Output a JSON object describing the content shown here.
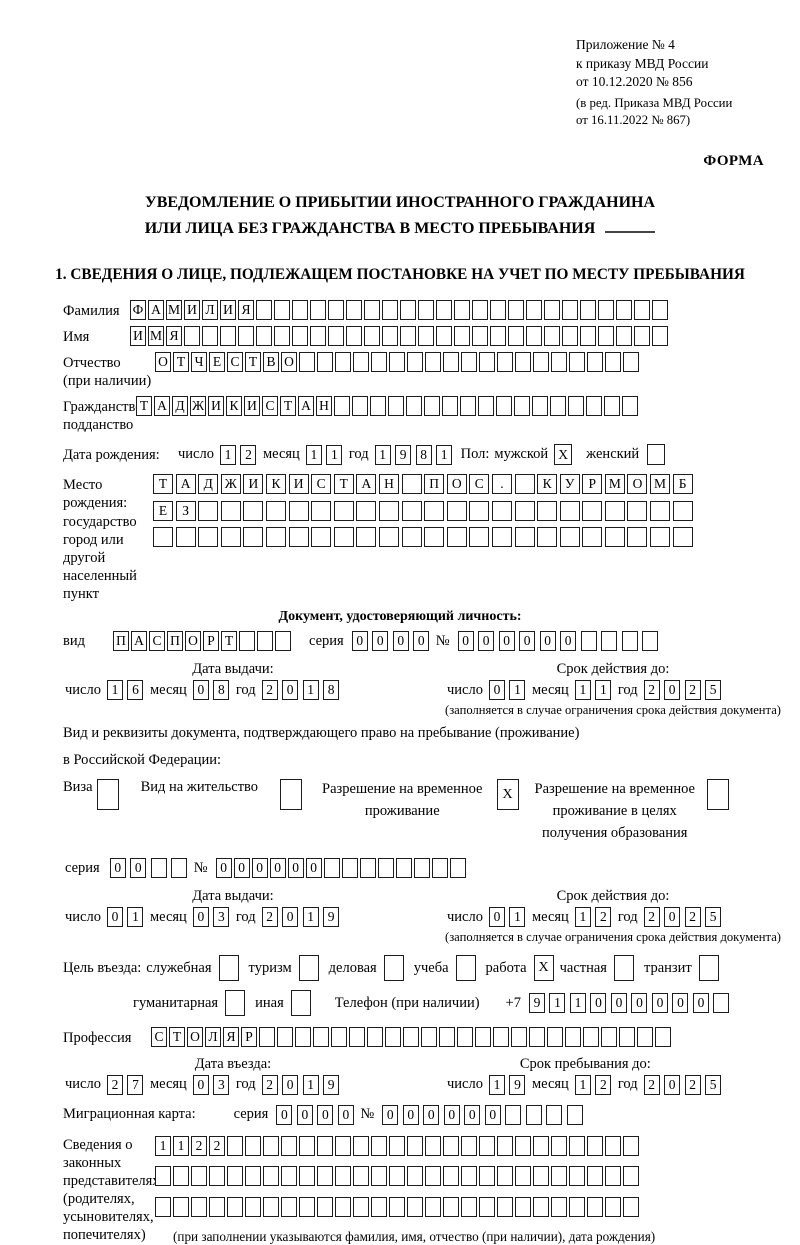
{
  "header": {
    "line1": "Приложение № 4",
    "line2": "к приказу МВД России",
    "line3": "от 10.12.2020 № 856",
    "sub1": "(в ред. Приказа МВД России",
    "sub2": "от 16.11.2022 № 867)",
    "forma": "ФОРМА"
  },
  "title": {
    "line1": "УВЕДОМЛЕНИЕ О ПРИБЫТИИ ИНОСТРАННОГО ГРАЖДАНИНА",
    "line2": "ИЛИ ЛИЦА БЕЗ ГРАЖДАНСТВА В МЕСТО ПРЕБЫВАНИЯ"
  },
  "section1": {
    "heading": "1. СВЕДЕНИЯ О ЛИЦЕ, ПОДЛЕЖАЩЕМ ПОСТАНОВКЕ НА УЧЕТ ПО МЕСТУ ПРЕБЫВАНИЯ"
  },
  "date_labels": {
    "day": "число",
    "month": "месяц",
    "year": "год"
  },
  "fields": {
    "surname": {
      "label": "Фамилия",
      "value": "ФАМИЛИЯ",
      "cells": 30
    },
    "name": {
      "label": "Имя",
      "value": "ИМЯ",
      "cells": 30
    },
    "patronymic": {
      "label1": "Отчество",
      "label2": "(при наличии)",
      "value": "ОТЧЕСТВО",
      "cells": 27
    },
    "citizenship": {
      "label1": "Гражданство,",
      "label2": "подданство",
      "value": "ТАДЖИКИСТАН",
      "cells": 28
    },
    "birth_date": {
      "label": "Дата рождения:",
      "day": {
        "value": "12",
        "cells": 2
      },
      "month": {
        "value": "11",
        "cells": 2
      },
      "year": {
        "value": "1981",
        "cells": 4
      }
    },
    "gender": {
      "label": "Пол:",
      "male_label": "мужской",
      "male": "X",
      "female_label": "женский",
      "female": ""
    },
    "birth_place": {
      "label1": "Место рождения:",
      "label2": "государство",
      "label3": "город или другой",
      "label4": "населенный пункт",
      "row1": {
        "value": "ТАДЖИКИСТАН ПОС. КУРМОМБ",
        "cells": 24
      },
      "row2": {
        "value": "ЕЗ",
        "cells": 24
      },
      "row3": {
        "value": "",
        "cells": 24
      }
    },
    "profession": {
      "label": "Профессия",
      "value": "СТОЛЯР",
      "cells": 29
    }
  },
  "identity_doc": {
    "heading": "Документ, удостоверяющий личность:",
    "kind_label": "вид",
    "kind": {
      "value": "ПАСПОРТ",
      "cells": 10
    },
    "series_label": "серия",
    "series": {
      "value": "0000",
      "cells": 4
    },
    "number_label": "№",
    "number": {
      "value": "000000",
      "cells": 10
    }
  },
  "dates": {
    "restriction_note": "(заполняется в случае ограничения срока действия документа)",
    "doc_issue": {
      "title": "Дата выдачи:",
      "day": {
        "value": "16",
        "cells": 2
      },
      "month": {
        "value": "08",
        "cells": 2
      },
      "year": {
        "value": "2018",
        "cells": 4
      }
    },
    "doc_expiry": {
      "title": "Срок действия до:",
      "day": {
        "value": "01",
        "cells": 2
      },
      "month": {
        "value": "11",
        "cells": 2
      },
      "year": {
        "value": "2025",
        "cells": 4
      }
    },
    "permit_issue": {
      "title": "Дата выдачи:",
      "day": {
        "value": "01",
        "cells": 2
      },
      "month": {
        "value": "03",
        "cells": 2
      },
      "year": {
        "value": "2019",
        "cells": 4
      }
    },
    "permit_expiry": {
      "title": "Срок действия до:",
      "day": {
        "value": "01",
        "cells": 2
      },
      "month": {
        "value": "12",
        "cells": 2
      },
      "year": {
        "value": "2025",
        "cells": 4
      }
    },
    "entry_date": {
      "title": "Дата въезда:",
      "day": {
        "value": "27",
        "cells": 2
      },
      "month": {
        "value": "03",
        "cells": 2
      },
      "year": {
        "value": "2019",
        "cells": 4
      }
    },
    "stay_until": {
      "title": "Срок пребывания до:",
      "day": {
        "value": "19",
        "cells": 2
      },
      "month": {
        "value": "12",
        "cells": 2
      },
      "year": {
        "value": "2025",
        "cells": 4
      }
    }
  },
  "residence_doc": {
    "line1": "Вид и реквизиты документа, подтверждающего право на пребывание (проживание)",
    "line2": "в Российской Федерации:",
    "options": [
      {
        "label": "Виза",
        "checked": ""
      },
      {
        "label": "Вид на жительство",
        "checked": ""
      },
      {
        "label": "Разрешение на временное\nпроживание",
        "checked": "X"
      },
      {
        "label": "Разрешение на временное\nпроживание в целях\nполучения образования",
        "checked": ""
      }
    ],
    "series_label": "серия",
    "series": {
      "value": "00",
      "cells": 4
    },
    "number_label": "№",
    "number": {
      "value": "000000",
      "cells": 14
    }
  },
  "entry_purpose": {
    "label": "Цель въезда:",
    "options_line1": [
      {
        "label": "служебная",
        "checked": ""
      },
      {
        "label": "туризм",
        "checked": ""
      },
      {
        "label": "деловая",
        "checked": ""
      },
      {
        "label": "учеба",
        "checked": ""
      },
      {
        "label": "работа",
        "checked": "X"
      },
      {
        "label": "частная",
        "checked": ""
      },
      {
        "label": "транзит",
        "checked": ""
      }
    ],
    "options_line2": [
      {
        "label": "гуманитарная",
        "checked": ""
      },
      {
        "label": "иная",
        "checked": ""
      }
    ],
    "phone_label": "Телефон (при наличии)",
    "phone_prefix": "+7",
    "phone": {
      "value": "911000000",
      "cells": 10
    }
  },
  "migration_card": {
    "label": "Миграционная карта:",
    "series_label": "серия",
    "series": {
      "value": "0000",
      "cells": 4
    },
    "number_label": "№",
    "number": {
      "value": "000000",
      "cells": 10
    }
  },
  "legal_reps": {
    "label1": "Сведения о",
    "label2": "законных",
    "label3": "представителях",
    "label4": "(родителях,",
    "label5": "усыновителях,",
    "label6": "попечителях)",
    "row1": {
      "value": "1122",
      "cells": 27
    },
    "row2": {
      "value": "",
      "cells": 27
    },
    "row3": {
      "value": "",
      "cells": 27
    },
    "note": "(при заполнении указываются фамилия, имя, отчество (при наличии), дата рождения)"
  }
}
